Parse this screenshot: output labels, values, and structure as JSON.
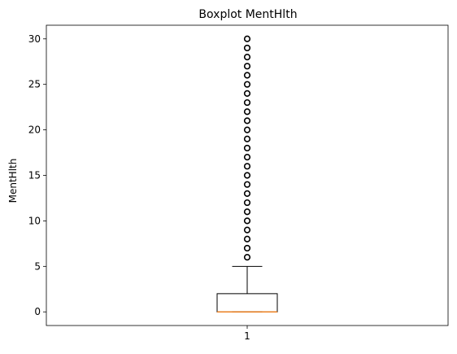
{
  "chart_data": {
    "type": "boxplot",
    "title": "Boxplot MentHlth",
    "xlabel": "",
    "ylabel": "MentHlth",
    "categories": [
      "1"
    ],
    "yticks": [
      "0",
      "5",
      "10",
      "15",
      "20",
      "25",
      "30"
    ],
    "ylim": [
      -1.5,
      31.5
    ],
    "grid": false,
    "series": [
      {
        "category": "1",
        "whislo": 0,
        "q1": 0,
        "median": 0,
        "q3": 2,
        "whishi": 5,
        "fliers": [
          6,
          7,
          8,
          9,
          10,
          11,
          12,
          13,
          14,
          15,
          16,
          17,
          18,
          19,
          20,
          21,
          22,
          23,
          24,
          25,
          26,
          27,
          28,
          29,
          30
        ]
      }
    ],
    "colors": {
      "box": "#000000",
      "median": "#ff7f0e",
      "flier": "#000000"
    }
  }
}
